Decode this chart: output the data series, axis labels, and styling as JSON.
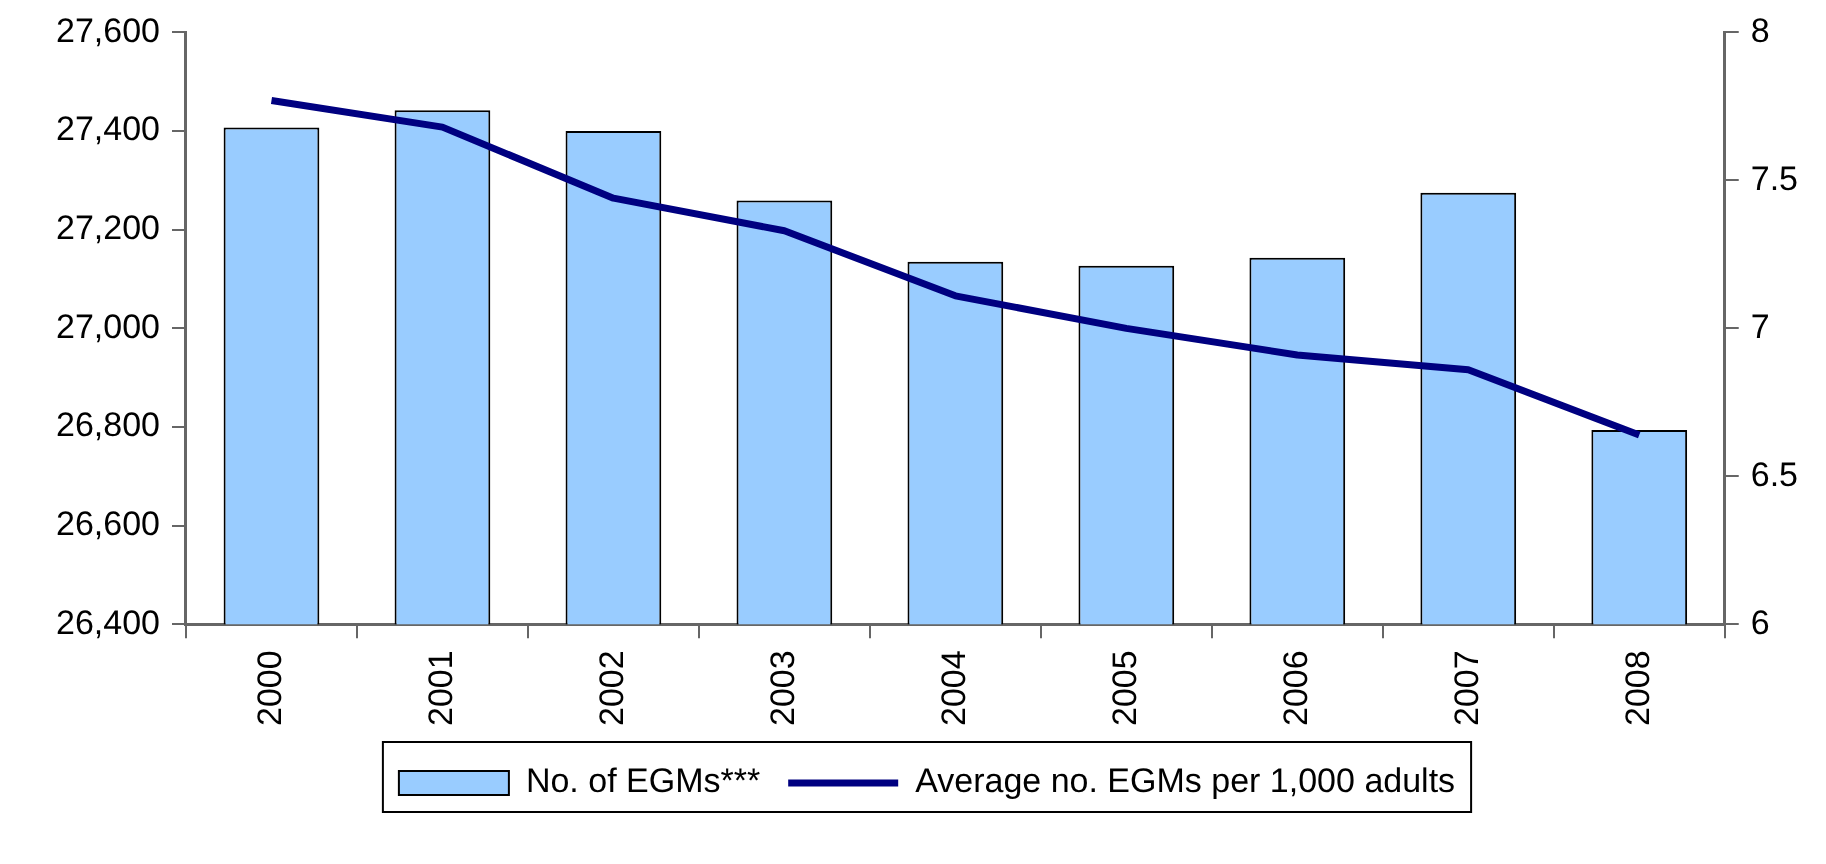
{
  "chart_data": {
    "type": "bar",
    "categories": [
      "2000",
      "2001",
      "2002",
      "2003",
      "2004",
      "2005",
      "2006",
      "2007",
      "2008"
    ],
    "series": [
      {
        "name": "No. of EGMs***",
        "color": "#99ccff",
        "values": [
          27407,
          27442,
          27400,
          27259,
          27135,
          27127,
          27143,
          27275,
          26794
        ]
      },
      {
        "name": "Average no. EGMs per 1,000 adults",
        "type": "line",
        "axis": "y2",
        "color": "#000080",
        "values": [
          7.77,
          7.68,
          7.44,
          7.33,
          7.11,
          7.0,
          6.91,
          6.86,
          6.64
        ]
      }
    ],
    "ylim": [
      26400,
      27600
    ],
    "yticks": [
      {
        "value": 26400,
        "label": "26,400"
      },
      {
        "value": 26600,
        "label": "26,600"
      },
      {
        "value": 26800,
        "label": "26,800"
      },
      {
        "value": 27000,
        "label": "27,000"
      },
      {
        "value": 27200,
        "label": "27,200"
      },
      {
        "value": 27400,
        "label": "27,400"
      },
      {
        "value": 27600,
        "label": "27,600"
      }
    ],
    "y2lim": [
      6,
      8
    ],
    "y2ticks": [
      6,
      6.5,
      7,
      7.5,
      8
    ],
    "grid": false,
    "legend": "bottom",
    "marker": "none"
  }
}
